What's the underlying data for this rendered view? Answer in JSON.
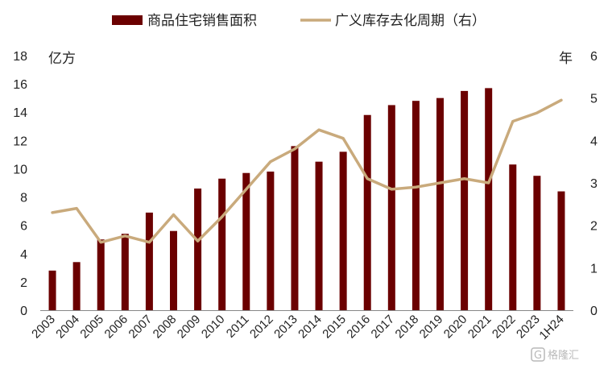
{
  "chart_data": {
    "type": "bar",
    "categories": [
      "2003",
      "2004",
      "2005",
      "2006",
      "2007",
      "2008",
      "2009",
      "2010",
      "2011",
      "2012",
      "2013",
      "2014",
      "2015",
      "2016",
      "2017",
      "2018",
      "2019",
      "2020",
      "2021",
      "2022",
      "2023",
      "1H24"
    ],
    "series": [
      {
        "name": "商品住宅销售面积",
        "type": "bar",
        "axis": "left",
        "color": "#6b0000",
        "values": [
          2.8,
          3.4,
          5.0,
          5.4,
          6.9,
          5.6,
          8.6,
          9.3,
          9.7,
          9.8,
          11.6,
          10.5,
          11.2,
          13.8,
          14.5,
          14.8,
          15.0,
          15.5,
          15.7,
          10.3,
          9.5,
          8.4
        ]
      },
      {
        "name": "广义库存去化周期（右）",
        "type": "line",
        "axis": "right",
        "color": "#c9aa7c",
        "values": [
          2.3,
          2.4,
          1.6,
          1.75,
          1.6,
          2.25,
          1.63,
          2.2,
          2.85,
          3.5,
          3.8,
          4.25,
          4.05,
          3.1,
          2.85,
          2.9,
          3.0,
          3.1,
          3.0,
          4.45,
          4.65,
          4.95
        ]
      }
    ],
    "ylabel_left": "亿方",
    "ylabel_right": "年",
    "ylim_left": [
      0,
      18
    ],
    "yticks_left": [
      0,
      2,
      4,
      6,
      8,
      10,
      12,
      14,
      16,
      18
    ],
    "ylim_right": [
      0,
      6
    ],
    "yticks_right": [
      0,
      1,
      2,
      3,
      4,
      5,
      6
    ],
    "grid": false,
    "legend_position": "top"
  },
  "watermark": "格隆汇"
}
